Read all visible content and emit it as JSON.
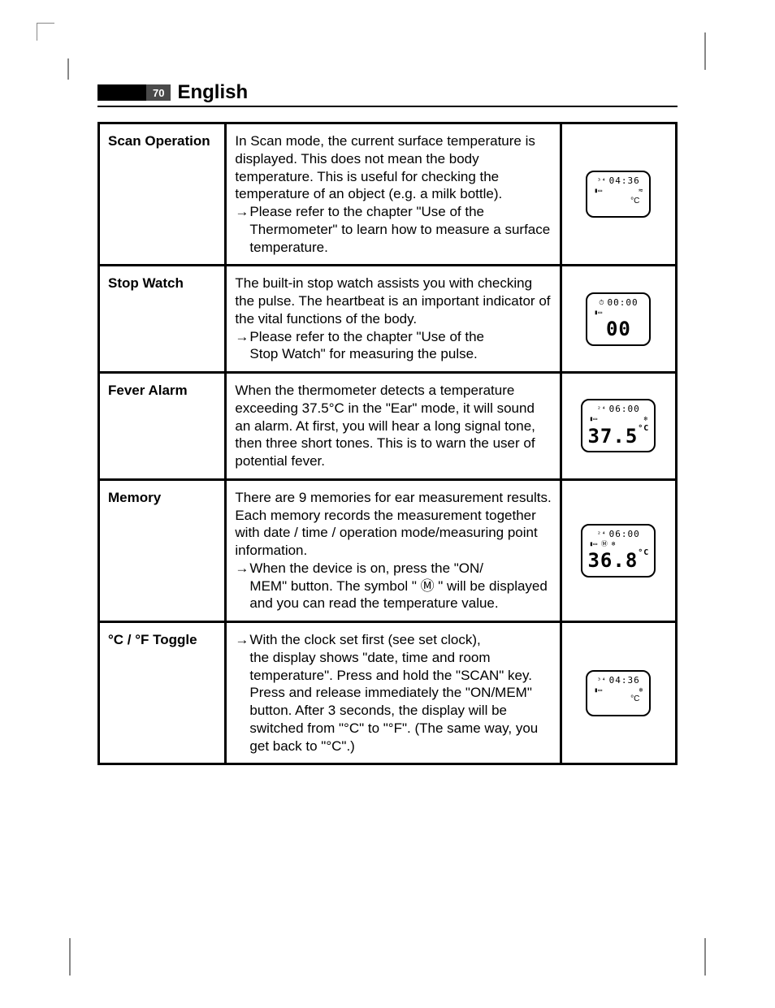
{
  "header": {
    "page_number": "70",
    "title": "English"
  },
  "rows": [
    {
      "name": "Scan Operation",
      "para": "In Scan mode, the current surface temperature is displayed. This does not mean the body temperature. This is useful for checking the temperature of an object (e.g. a milk bottle).",
      "arrow1_a": "Please refer to the chapter \"Use of the",
      "arrow1_b": "Thermometer\" to learn how to measure a surface temperature.",
      "lcd": {
        "top_pre": "³⁴",
        "top": "04:36",
        "sub_l": "▮▭",
        "sub_r": "≈",
        "big": "",
        "unit": "°C"
      }
    },
    {
      "name": "Stop Watch",
      "para": "The built-in stop watch assists you with checking the pulse. The heartbeat is an important indicator of the vital functions of the body.",
      "arrow1_a": "Please refer to the chapter \"Use of the",
      "arrow1_b": "Stop Watch\" for measuring the pulse.",
      "lcd": {
        "top_pre": "⏱",
        "top": "00:00",
        "sub_l": "▮▭",
        "sub_r": "",
        "big": "00",
        "unit": ""
      }
    },
    {
      "name": "Fever Alarm",
      "para": "When the thermometer detects a temperature exceeding 37.5°C in the \"Ear\" mode, it will sound an alarm. At first, you will hear a long signal tone, then three short tones. This is to warn the user of potential fever.",
      "lcd": {
        "top_pre": "²⁴",
        "top": "06:00",
        "sub_l": "▮▭",
        "sub_r": "❄",
        "big": "37.5",
        "unit": "°C"
      }
    },
    {
      "name": "Memory",
      "para": "There are 9 memories for ear measurement results. Each memory records the measurement together with date / time / operation mode/measuring point information.",
      "arrow1_a": "When the device is on, press the \"ON/",
      "arrow1_b": "MEM\" button. The symbol \" Ⓜ \" will be displayed and you can read the temperature value.",
      "lcd": {
        "top_pre": "²⁴",
        "top": "06:00",
        "sub_l": "▮▭ Ⓜ ❄",
        "sub_r": "",
        "big": "36.8",
        "unit": "°C"
      }
    },
    {
      "name": "°C / °F Toggle",
      "arrow1_a": "With the clock set first (see set clock),",
      "arrow1_b": "the display shows \"date, time and room temperature\". Press and hold the \"SCAN\" key. Press and release immediately the \"ON/MEM\" button. After 3 seconds, the display will be switched from \"°C\" to \"°F\". (The same way, you get back to \"°C\".)",
      "lcd": {
        "top_pre": "³⁴",
        "top": "04:36",
        "sub_l": "▮▭",
        "sub_r": "❄",
        "big": "",
        "unit": "°C"
      }
    }
  ]
}
